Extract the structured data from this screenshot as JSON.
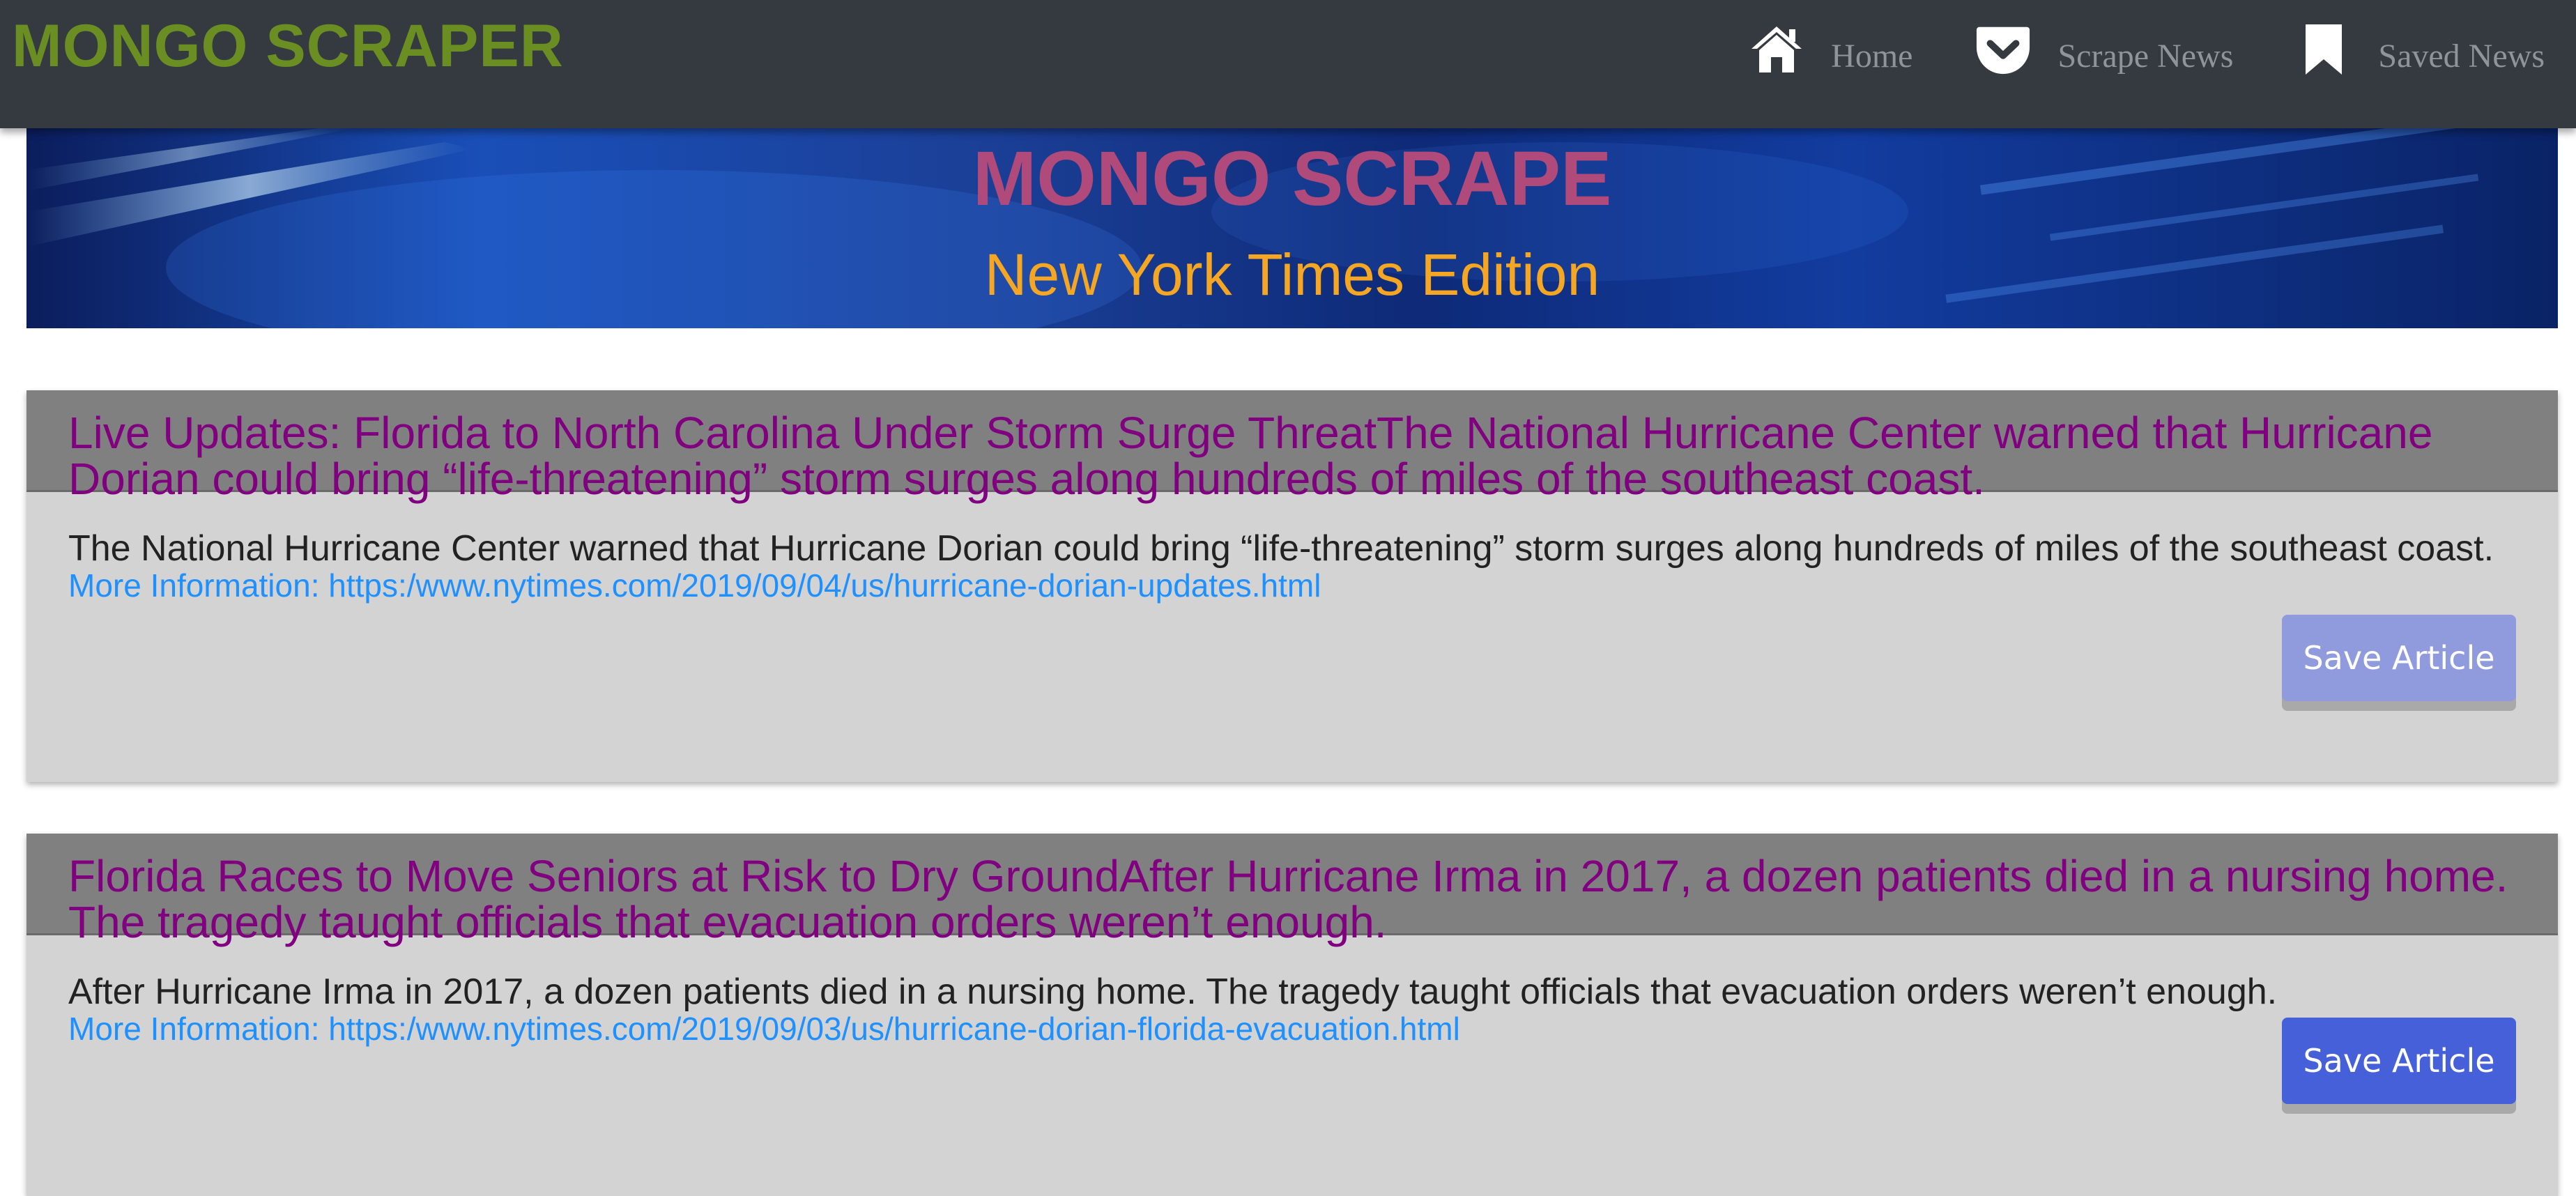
{
  "navbar": {
    "brand": "MONGO SCRAPER",
    "items": [
      {
        "label": "Home",
        "icon": "home-icon"
      },
      {
        "label": "Scrape News",
        "icon": "pocket-icon"
      },
      {
        "label": "Saved News",
        "icon": "bookmark-icon"
      }
    ]
  },
  "hero": {
    "title": "MONGO SCRAPE",
    "subtitle": "New York Times Edition"
  },
  "articles": [
    {
      "title": "Live Updates: Florida to North Carolina Under Storm Surge ThreatThe National Hurricane Center warned that Hurricane Dorian could bring “life-threatening” storm surges along hundreds of miles of the southeast coast.",
      "summary": "The National Hurricane Center warned that Hurricane Dorian could bring “life-threatening” storm surges along hundreds of miles of the southeast coast.",
      "link": "More Information: https:/www.nytimes.com/2019/09/04/us/hurricane-dorian-updates.html",
      "button": "Save Article"
    },
    {
      "title": "Florida Races to Move Seniors at Risk to Dry GroundAfter Hurricane Irma in 2017, a dozen patients died in a nursing home. The tragedy taught officials that evacuation orders weren’t enough.",
      "summary": "After Hurricane Irma in 2017, a dozen patients died in a nursing home. The tragedy taught officials that evacuation orders weren’t enough.",
      "link": "More Information: https:/www.nytimes.com/2019/09/03/us/hurricane-dorian-florida-evacuation.html",
      "button": "Save Article"
    }
  ],
  "colors": {
    "navbar": "#343a40",
    "brand": "#6b8e23",
    "card_title": "#800080",
    "link": "#1e90ff",
    "button": "#4560d9"
  }
}
